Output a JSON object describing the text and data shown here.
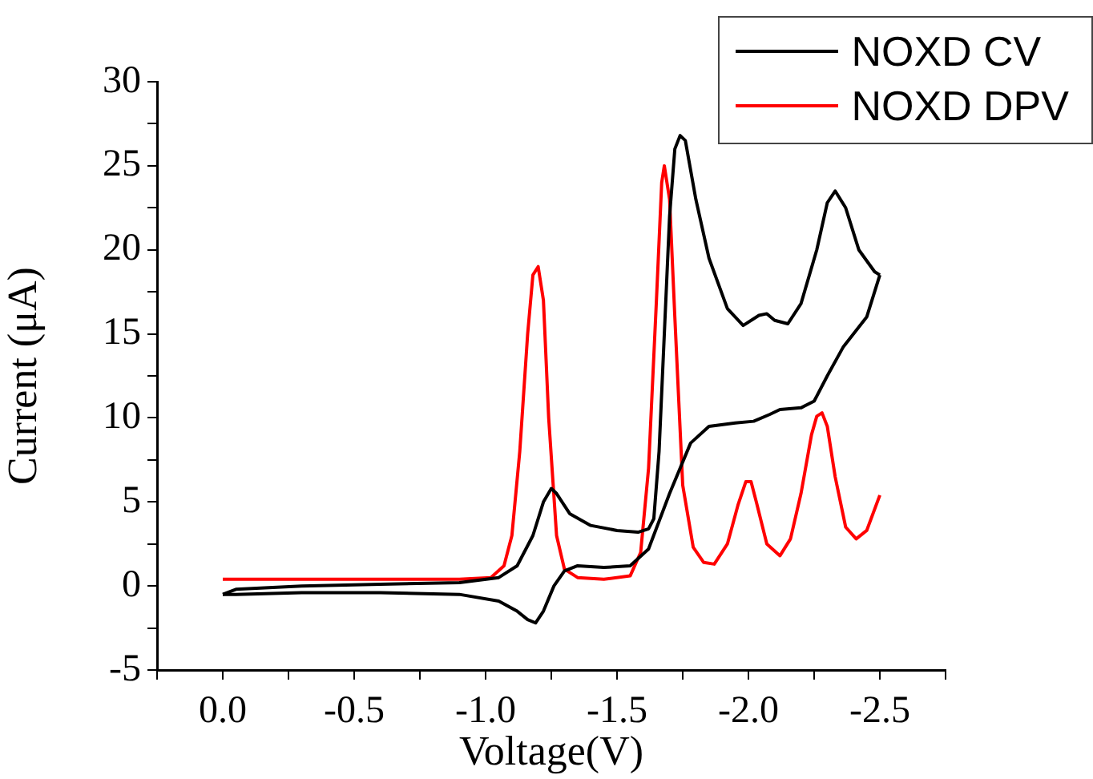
{
  "chart_data": {
    "type": "line",
    "xlabel": "Voltage(V)",
    "ylabel": "Current (μA)",
    "xlim": [
      0.25,
      -2.75
    ],
    "ylim": [
      -5,
      30
    ],
    "xticks": [
      {
        "value": 0.25,
        "label": null
      },
      {
        "value": 0,
        "label": "0.0"
      },
      {
        "value": -0.25,
        "label": null
      },
      {
        "value": -0.5,
        "label": "-0.5"
      },
      {
        "value": -0.75,
        "label": null
      },
      {
        "value": -1,
        "label": "-1.0"
      },
      {
        "value": -1.25,
        "label": null
      },
      {
        "value": -1.5,
        "label": "-1.5"
      },
      {
        "value": -1.75,
        "label": null
      },
      {
        "value": -2,
        "label": "-2.0"
      },
      {
        "value": -2.25,
        "label": null
      },
      {
        "value": -2.5,
        "label": "-2.5"
      },
      {
        "value": -2.75,
        "label": null
      }
    ],
    "yticks": [
      -5,
      {
        "value": -2.5,
        "label": null
      },
      0,
      {
        "value": 2.5,
        "label": null
      },
      5,
      {
        "value": 7.5,
        "label": null
      },
      10,
      {
        "value": 12.5,
        "label": null
      },
      15,
      {
        "value": 17.5,
        "label": null
      },
      20,
      {
        "value": 22.5,
        "label": null
      },
      25,
      {
        "value": 27.5,
        "label": null
      },
      30
    ],
    "grid": false,
    "legend": "top right",
    "marker": "none",
    "line_style": "solid",
    "series": [
      {
        "name": "NOXD CV",
        "color": "#000000",
        "x": [
          0,
          -0.05,
          -0.3,
          -0.6,
          -0.9,
          -1.05,
          -1.12,
          -1.16,
          -1.19,
          -1.22,
          -1.26,
          -1.3,
          -1.35,
          -1.45,
          -1.55,
          -1.62,
          -1.7,
          -1.78,
          -1.85,
          -1.95,
          -2.02,
          -2.08,
          -2.12,
          -2.2,
          -2.25,
          -2.3,
          -2.36,
          -2.45,
          -2.5
        ],
        "values": [
          -0.5,
          -0.5,
          -0.4,
          -0.4,
          -0.5,
          -0.9,
          -1.5,
          -2,
          -2.2,
          -1.5,
          0,
          0.9,
          1.2,
          1.1,
          1.2,
          2.2,
          5.5,
          8.5,
          9.5,
          9.7,
          9.8,
          10.2,
          10.5,
          10.6,
          11,
          12.5,
          14.2,
          16,
          18.5
        ]
      },
      {
        "color": "#000000",
        "x": [
          -2.5,
          -2.48,
          -2.42,
          -2.37,
          -2.33,
          -2.3,
          -2.26,
          -2.2,
          -2.15,
          -2.1,
          -2.07,
          -2.04,
          -1.98,
          -1.92,
          -1.85,
          -1.8,
          -1.76,
          -1.74,
          -1.72,
          -1.7,
          -1.68,
          -1.66,
          -1.64,
          -1.62,
          -1.58,
          -1.5,
          -1.4,
          -1.32,
          -1.27,
          -1.25,
          -1.22,
          -1.18,
          -1.12,
          -1.05,
          -0.9,
          -0.6,
          -0.3,
          -0.05,
          0
        ],
        "values": [
          18.5,
          18.7,
          20,
          22.5,
          23.5,
          22.8,
          20,
          16.8,
          15.6,
          15.8,
          16.2,
          16.1,
          15.5,
          16.5,
          19.5,
          23,
          26.5,
          26.8,
          26,
          22,
          15,
          8,
          4,
          3.4,
          3.2,
          3.3,
          3.6,
          4.3,
          5.5,
          5.8,
          5,
          3,
          1.2,
          0.5,
          0.2,
          0.1,
          0,
          -0.2,
          -0.5
        ]
      },
      {
        "name": "NOXD DPV",
        "color": "#ff0000",
        "x": [
          0,
          -0.5,
          -0.9,
          -1.02,
          -1.07,
          -1.1,
          -1.13,
          -1.16,
          -1.18,
          -1.2,
          -1.22,
          -1.24,
          -1.27,
          -1.3,
          -1.35,
          -1.45,
          -1.55,
          -1.59,
          -1.62,
          -1.65,
          -1.67,
          -1.68,
          -1.7,
          -1.72,
          -1.75,
          -1.79,
          -1.83,
          -1.87,
          -1.92,
          -1.96,
          -1.99,
          -2.01,
          -2.03,
          -2.07,
          -2.12,
          -2.16,
          -2.2,
          -2.24,
          -2.26,
          -2.28,
          -2.3,
          -2.33,
          -2.37,
          -2.41,
          -2.45,
          -2.5
        ],
        "values": [
          0.4,
          0.4,
          0.4,
          0.5,
          1.2,
          3,
          8,
          15,
          18.5,
          19,
          17,
          10,
          3,
          1,
          0.5,
          0.4,
          0.6,
          2,
          7,
          17,
          24,
          25,
          23,
          16,
          6,
          2.3,
          1.4,
          1.3,
          2.5,
          4.8,
          6.2,
          6.2,
          5,
          2.5,
          1.8,
          2.8,
          5.5,
          9,
          10.1,
          10.3,
          9.5,
          6.5,
          3.5,
          2.8,
          3.3,
          5.4
        ]
      }
    ]
  }
}
